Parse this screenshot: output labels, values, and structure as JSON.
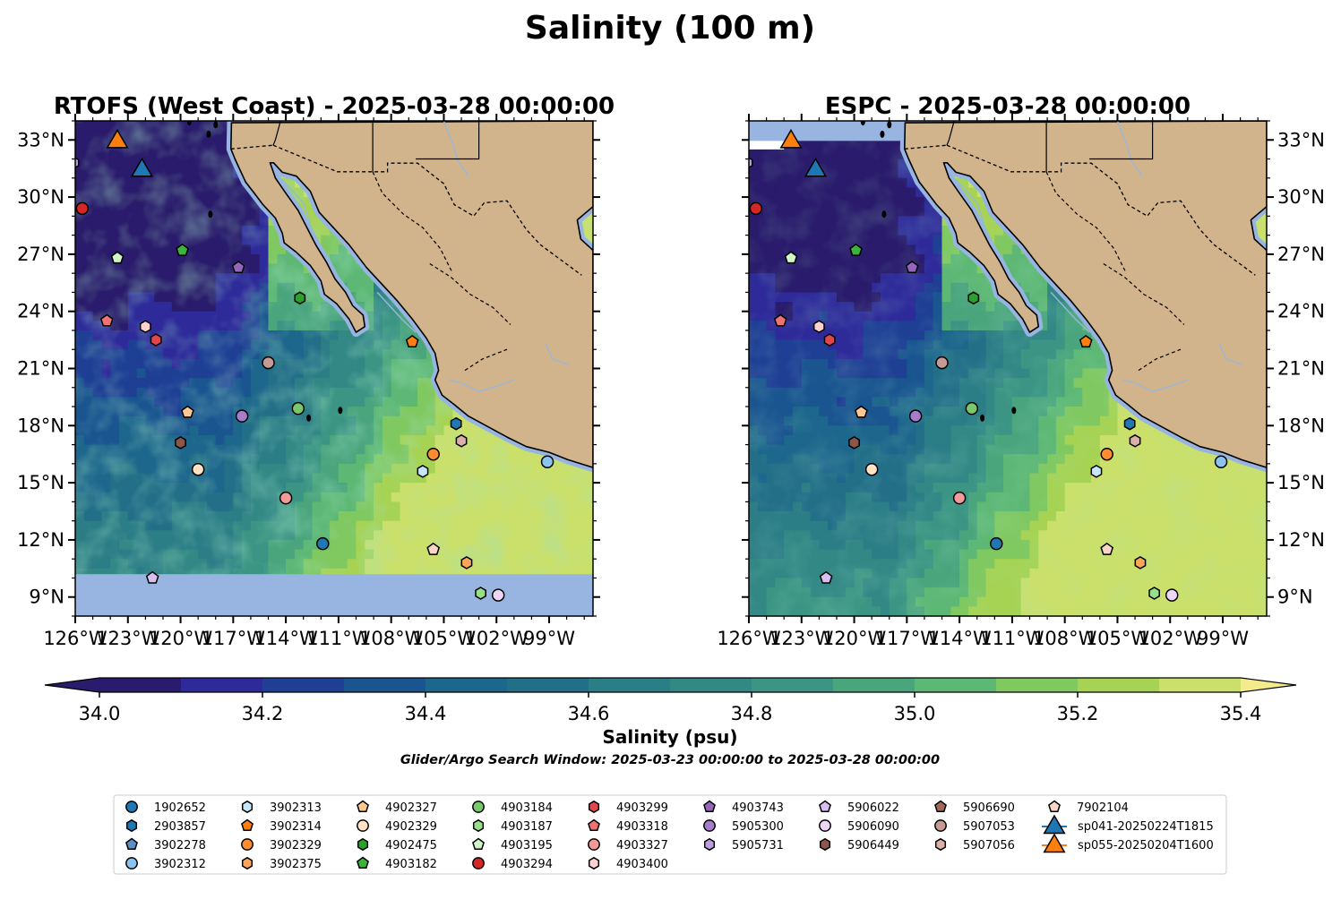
{
  "figure": {
    "title": "Salinity (100 m)",
    "search_window": "Glider/Argo Search Window: 2025-03-23 00:00:00 to 2025-03-28 00:00:00"
  },
  "panels": [
    {
      "title": "RTOFS (West Coast) - 2025-03-28 00:00:00"
    },
    {
      "title": "ESPC - 2025-03-28 00:00:00"
    }
  ],
  "colors": {
    "land": "#d2b48c",
    "nodata": "#98b4e0",
    "colormap": [
      "#2a1b6c",
      "#2e2a9a",
      "#1f3f95",
      "#1a5590",
      "#1d668c",
      "#236f88",
      "#2b7d86",
      "#338886",
      "#3c9584",
      "#4aa57d",
      "#5eb875",
      "#80c860",
      "#a6d353",
      "#cbe06a"
    ],
    "cbar_under": "#2a1b6c",
    "cbar_over": "#f4eb8c"
  },
  "chart_data": {
    "type": "contourf-map",
    "variable": "Salinity (psu)",
    "extent": {
      "lon": [
        -126,
        -96.5
      ],
      "lat": [
        8,
        34
      ]
    },
    "lon_ticks": [
      -126,
      -123,
      -120,
      -117,
      -114,
      -111,
      -108,
      -105,
      -102,
      -99
    ],
    "lat_ticks": [
      9,
      12,
      15,
      18,
      21,
      24,
      27,
      30,
      33
    ],
    "lon_tick_labels": [
      "126°W",
      "123°W",
      "120°W",
      "117°W",
      "114°W",
      "111°W",
      "108°W",
      "105°W",
      "102°W",
      "99°W"
    ],
    "lat_tick_labels": [
      "9°N",
      "12°N",
      "15°N",
      "18°N",
      "21°N",
      "24°N",
      "27°N",
      "30°N",
      "33°N"
    ],
    "colorbar": {
      "label": "Salinity (psu)",
      "levels": [
        34.0,
        34.1,
        34.2,
        34.3,
        34.4,
        34.5,
        34.6,
        34.7,
        34.8,
        34.9,
        35.0,
        35.1,
        35.2,
        35.3,
        35.4
      ],
      "tick_values": [
        34.0,
        34.2,
        34.4,
        34.6,
        34.8,
        35.0,
        35.2,
        35.4
      ],
      "tick_labels": [
        "34.0",
        "34.2",
        "34.4",
        "34.6",
        "34.8",
        "35.0",
        "35.2",
        "35.4"
      ],
      "extend": "both"
    },
    "markers": [
      {
        "id": "1902652",
        "marker": "circle",
        "color": "#1f77b4",
        "lon": -111.9,
        "lat": 11.8
      },
      {
        "id": "2903857",
        "marker": "hexagon",
        "color": "#1f77b4",
        "lon": -104.3,
        "lat": 18.1
      },
      {
        "id": "3902278",
        "marker": "pentagon",
        "color": "#5b8fc7",
        "lon": null,
        "lat": null
      },
      {
        "id": "3902312",
        "marker": "circle",
        "color": "#8cc3ee",
        "lon": -99.1,
        "lat": 16.1
      },
      {
        "id": "3902313",
        "marker": "hexagon",
        "color": "#c6e6fa",
        "lon": -106.2,
        "lat": 15.6
      },
      {
        "id": "3902314",
        "marker": "pentagon",
        "color": "#ff7f0e",
        "lon": -106.8,
        "lat": 22.4
      },
      {
        "id": "3902329",
        "marker": "circle",
        "color": "#ff8c30",
        "lon": -105.6,
        "lat": 16.5
      },
      {
        "id": "3902375",
        "marker": "hexagon",
        "color": "#ffa55a",
        "lon": -103.7,
        "lat": 10.8
      },
      {
        "id": "4902327",
        "marker": "pentagon",
        "color": "#ffc892",
        "lon": -119.6,
        "lat": 18.7
      },
      {
        "id": "4902329",
        "marker": "circle",
        "color": "#ffe3c4",
        "lon": -119.0,
        "lat": 15.7
      },
      {
        "id": "4902475",
        "marker": "hexagon",
        "color": "#2ca02c",
        "lon": -113.2,
        "lat": 24.7
      },
      {
        "id": "4903182",
        "marker": "pentagon",
        "color": "#3cb43c",
        "lon": -119.9,
        "lat": 27.2
      },
      {
        "id": "4903184",
        "marker": "circle",
        "color": "#77c96b",
        "lon": -113.3,
        "lat": 18.9
      },
      {
        "id": "4903187",
        "marker": "hexagon",
        "color": "#98df8a",
        "lon": -102.9,
        "lat": 9.2
      },
      {
        "id": "4903195",
        "marker": "pentagon",
        "color": "#d0f5c8",
        "lon": -123.6,
        "lat": 26.8
      },
      {
        "id": "4903294",
        "marker": "circle",
        "color": "#d62728",
        "lon": -125.6,
        "lat": 29.4
      },
      {
        "id": "4903299",
        "marker": "hexagon",
        "color": "#e0464a",
        "lon": -121.4,
        "lat": 22.5
      },
      {
        "id": "4903318",
        "marker": "pentagon",
        "color": "#ef7373",
        "lon": -124.2,
        "lat": 23.5
      },
      {
        "id": "4903327",
        "marker": "circle",
        "color": "#f29a9a",
        "lon": -114.0,
        "lat": 14.2
      },
      {
        "id": "4903400",
        "marker": "hexagon",
        "color": "#fcd1d1",
        "lon": -122.0,
        "lat": 23.2
      },
      {
        "id": "4903743",
        "marker": "pentagon",
        "color": "#9467bd",
        "lon": -116.7,
        "lat": 26.3
      },
      {
        "id": "5905300",
        "marker": "circle",
        "color": "#a77ccb",
        "lon": -116.5,
        "lat": 18.5
      },
      {
        "id": "5905731",
        "marker": "hexagon",
        "color": "#bba0dd",
        "lon": -126.1,
        "lat": 31.8
      },
      {
        "id": "5906022",
        "marker": "pentagon",
        "color": "#d8bff0",
        "lon": -121.6,
        "lat": 10.0
      },
      {
        "id": "5906090",
        "marker": "circle",
        "color": "#eed6f8",
        "lon": -101.9,
        "lat": 9.1
      },
      {
        "id": "5906449",
        "marker": "hexagon",
        "color": "#8c564b",
        "lon": -120.0,
        "lat": 17.1
      },
      {
        "id": "5906690",
        "marker": "pentagon",
        "color": "#a0685a",
        "lon": null,
        "lat": null
      },
      {
        "id": "5907053",
        "marker": "circle",
        "color": "#c49c94",
        "lon": -115.0,
        "lat": 21.3
      },
      {
        "id": "5907056",
        "marker": "hexagon",
        "color": "#dcb0a8",
        "lon": -104.0,
        "lat": 17.2
      },
      {
        "id": "7902104",
        "marker": "pentagon",
        "color": "#fbd5c8",
        "lon": -105.6,
        "lat": 11.5
      },
      {
        "id": "sp041-20250224T1815",
        "marker": "triangle",
        "color": "#1f77b4",
        "lon": -122.2,
        "lat": 31.4
      },
      {
        "id": "sp055-20250204T1600",
        "marker": "triangle",
        "color": "#ff7f0e",
        "lon": -123.6,
        "lat": 32.9
      }
    ]
  }
}
